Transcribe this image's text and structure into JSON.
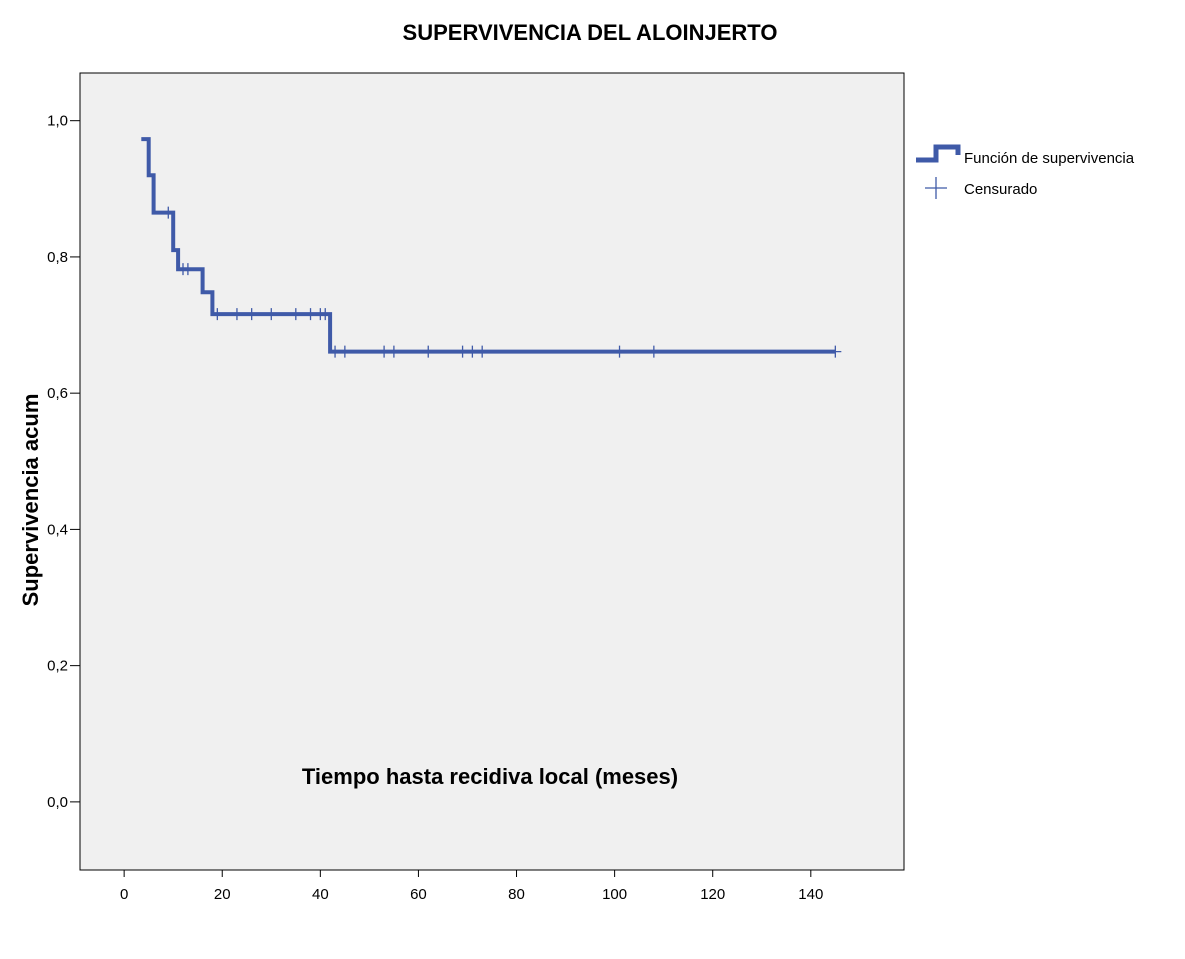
{
  "chart_data": {
    "type": "line",
    "title": "SUPERVIVENCIA DEL ALOINJERTO",
    "xlabel": "Tiempo hasta recidiva local  (meses)",
    "ylabel": "Supervivencia acum",
    "xlim": [
      -9,
      159
    ],
    "ylim": [
      -0.1,
      1.07
    ],
    "x_ticks": [
      0,
      20,
      40,
      60,
      80,
      100,
      120,
      140
    ],
    "x_tick_labels": [
      "0",
      "20",
      "40",
      "60",
      "80",
      "100",
      "120",
      "140"
    ],
    "y_ticks": [
      0.0,
      0.2,
      0.4,
      0.6,
      0.8,
      1.0
    ],
    "y_tick_labels": [
      "0,0",
      "0,2",
      "0,4",
      "0,6",
      "0,8",
      "1,0"
    ],
    "grid": false,
    "legend_position": "right-top",
    "colors": {
      "series": "#3f5aa8",
      "plot_bg": "#f0f0f0"
    },
    "series": [
      {
        "name": "Función de supervivencia",
        "style": "step",
        "x": [
          3.5,
          5,
          6,
          10,
          11,
          16,
          18,
          42,
          145
        ],
        "y": [
          0.973,
          0.92,
          0.865,
          0.81,
          0.782,
          0.748,
          0.716,
          0.661,
          0.661
        ]
      }
    ],
    "censored": {
      "name": "Censurado",
      "x": [
        9,
        12,
        13,
        19,
        23,
        26,
        30,
        35,
        38,
        40,
        41,
        43,
        45,
        53,
        55,
        62,
        69,
        71,
        73,
        101,
        108,
        145
      ],
      "y": [
        0.865,
        0.782,
        0.782,
        0.716,
        0.716,
        0.716,
        0.716,
        0.716,
        0.716,
        0.716,
        0.716,
        0.661,
        0.661,
        0.661,
        0.661,
        0.661,
        0.661,
        0.661,
        0.661,
        0.661,
        0.661,
        0.661
      ]
    }
  }
}
